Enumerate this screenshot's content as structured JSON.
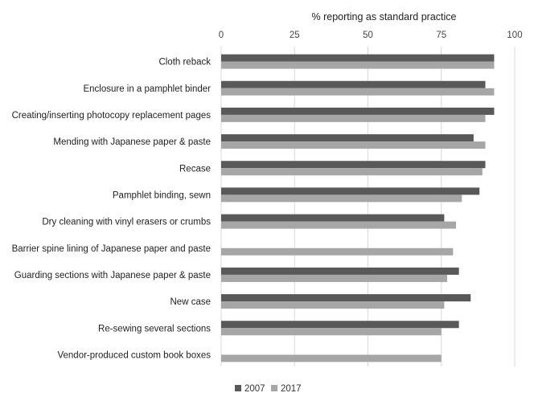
{
  "chart_data": {
    "type": "bar",
    "orientation": "horizontal",
    "xlabel": "% reporting as standard practice",
    "xlim": [
      0,
      100
    ],
    "xticks": [
      0,
      25,
      50,
      75,
      100
    ],
    "grid": true,
    "legend_position": "bottom-center",
    "categories": [
      "Cloth reback",
      "Enclosure in a pamphlet binder",
      "Creating/inserting photocopy replacement pages",
      "Mending with Japanese paper & paste",
      "Recase",
      "Pamphlet binding, sewn",
      "Dry cleaning with vinyl erasers or crumbs",
      "Barrier spine lining of Japanese paper and paste",
      "Guarding sections with Japanese paper & paste",
      "New case",
      "Re-sewing several sections",
      "Vendor-produced custom book boxes"
    ],
    "series": [
      {
        "name": "2007",
        "color": "#595959",
        "values": [
          93,
          90,
          93,
          86,
          90,
          88,
          76,
          null,
          81,
          85,
          81,
          null
        ]
      },
      {
        "name": "2017",
        "color": "#a6a6a6",
        "values": [
          93,
          93,
          90,
          90,
          89,
          82,
          80,
          79,
          77,
          76,
          75,
          75
        ]
      }
    ]
  }
}
